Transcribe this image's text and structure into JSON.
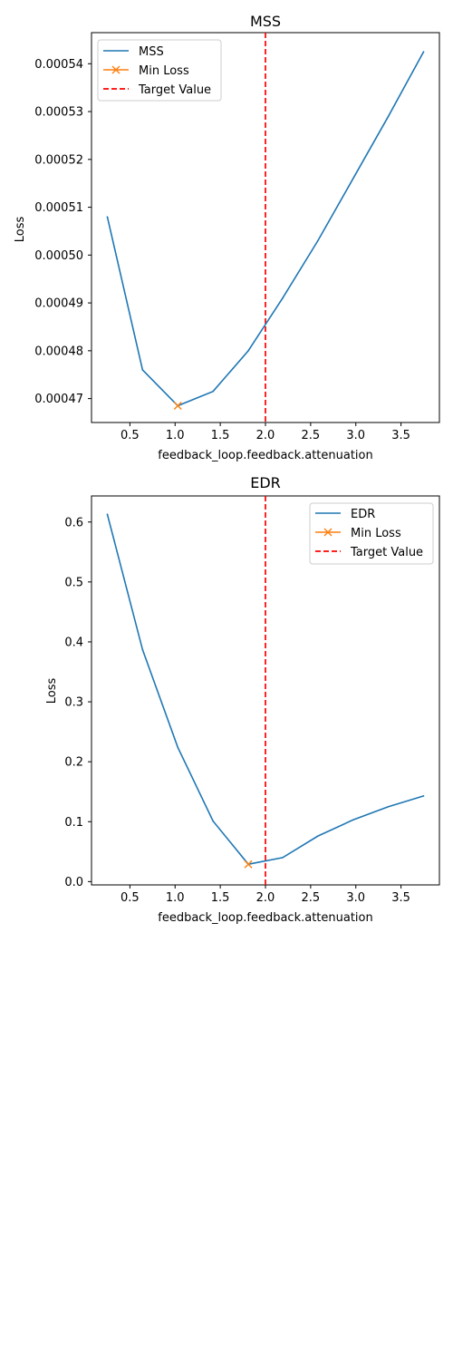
{
  "chart_data": [
    {
      "type": "line",
      "title": "MSS",
      "xlabel": "feedback_loop.feedback.attenuation",
      "ylabel": "Loss",
      "xlim": [
        0.075,
        3.925
      ],
      "ylim": [
        0.000465,
        0.0005465
      ],
      "xticks": [
        0.5,
        1.0,
        1.5,
        2.0,
        2.5,
        3.0,
        3.5
      ],
      "xtick_labels": [
        "0.5",
        "1.0",
        "1.5",
        "2.0",
        "2.5",
        "3.0",
        "3.5"
      ],
      "yticks": [
        0.00047,
        0.00048,
        0.00049,
        0.0005,
        0.00051,
        0.00052,
        0.00053,
        0.00054
      ],
      "ytick_labels": [
        "0.00047",
        "0.00048",
        "0.00049",
        "0.00050",
        "0.00051",
        "0.00052",
        "0.00053",
        "0.00054"
      ],
      "series": [
        {
          "name": "MSS",
          "color": "#1f77b4",
          "x": [
            0.25,
            0.64,
            1.03,
            1.42,
            1.81,
            2.19,
            2.58,
            2.97,
            3.36,
            3.75
          ],
          "y": [
            0.000508,
            0.000476,
            0.0004685,
            0.0004715,
            0.00048,
            0.000491,
            0.000503,
            0.000516,
            0.000529,
            0.0005425
          ]
        }
      ],
      "min_loss": {
        "name": "Min Loss",
        "color": "#ff7f0e",
        "x": 1.03,
        "y": 0.0004685
      },
      "target": {
        "name": "Target Value",
        "color": "#ff0000",
        "x": 2.0
      },
      "legend_position": "top-left",
      "grid": false
    },
    {
      "type": "line",
      "title": "EDR",
      "xlabel": "feedback_loop.feedback.attenuation",
      "ylabel": "Loss",
      "xlim": [
        0.075,
        3.925
      ],
      "ylim": [
        -0.0055,
        0.6435
      ],
      "xticks": [
        0.5,
        1.0,
        1.5,
        2.0,
        2.5,
        3.0,
        3.5
      ],
      "xtick_labels": [
        "0.5",
        "1.0",
        "1.5",
        "2.0",
        "2.5",
        "3.0",
        "3.5"
      ],
      "yticks": [
        0.0,
        0.1,
        0.2,
        0.3,
        0.4,
        0.5,
        0.6
      ],
      "ytick_labels": [
        "0.0",
        "0.1",
        "0.2",
        "0.3",
        "0.4",
        "0.5",
        "0.6"
      ],
      "series": [
        {
          "name": "EDR",
          "color": "#1f77b4",
          "x": [
            0.25,
            0.64,
            1.03,
            1.42,
            1.81,
            2.19,
            2.58,
            2.97,
            3.36,
            3.75
          ],
          "y": [
            0.613,
            0.387,
            0.224,
            0.101,
            0.029,
            0.04,
            0.076,
            0.103,
            0.125,
            0.143
          ]
        }
      ],
      "min_loss": {
        "name": "Min Loss",
        "color": "#ff7f0e",
        "x": 1.81,
        "y": 0.029
      },
      "target": {
        "name": "Target Value",
        "color": "#ff0000",
        "x": 2.0
      },
      "legend_position": "top-right",
      "grid": false
    }
  ]
}
